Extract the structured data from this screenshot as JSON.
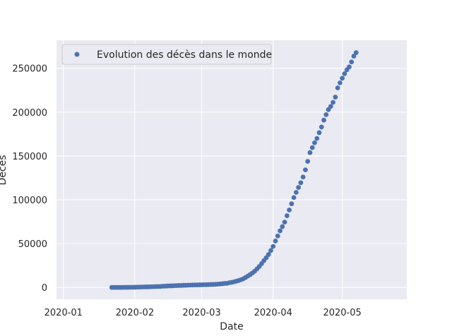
{
  "chart_data": {
    "type": "scatter",
    "title": "",
    "xlabel": "Date",
    "ylabel": "Décès",
    "x_ticks": [
      "2020-01",
      "2020-02",
      "2020-03",
      "2020-04",
      "2020-05"
    ],
    "y_ticks": [
      "0",
      "50000",
      "100000",
      "150000",
      "200000",
      "250000"
    ],
    "xlim": [
      "2019-12-29",
      "2020-05-29"
    ],
    "ylim": [
      -13500,
      282000
    ],
    "grid": true,
    "legend_position": "top-left",
    "colors": {
      "background": "#EAEAF2",
      "grid": "#FFFFFF",
      "marker": "#4C72B0"
    },
    "series": [
      {
        "name": "Evolution des décès dans le monde",
        "x": [
          "2020-01-22",
          "2020-01-23",
          "2020-01-24",
          "2020-01-25",
          "2020-01-26",
          "2020-01-27",
          "2020-01-28",
          "2020-01-29",
          "2020-01-30",
          "2020-01-31",
          "2020-02-01",
          "2020-02-02",
          "2020-02-03",
          "2020-02-04",
          "2020-02-05",
          "2020-02-06",
          "2020-02-07",
          "2020-02-08",
          "2020-02-09",
          "2020-02-10",
          "2020-02-11",
          "2020-02-12",
          "2020-02-13",
          "2020-02-14",
          "2020-02-15",
          "2020-02-16",
          "2020-02-17",
          "2020-02-18",
          "2020-02-19",
          "2020-02-20",
          "2020-02-21",
          "2020-02-22",
          "2020-02-23",
          "2020-02-24",
          "2020-02-25",
          "2020-02-26",
          "2020-02-27",
          "2020-02-28",
          "2020-02-29",
          "2020-03-01",
          "2020-03-02",
          "2020-03-03",
          "2020-03-04",
          "2020-03-05",
          "2020-03-06",
          "2020-03-07",
          "2020-03-08",
          "2020-03-09",
          "2020-03-10",
          "2020-03-11",
          "2020-03-12",
          "2020-03-13",
          "2020-03-14",
          "2020-03-15",
          "2020-03-16",
          "2020-03-17",
          "2020-03-18",
          "2020-03-19",
          "2020-03-20",
          "2020-03-21",
          "2020-03-22",
          "2020-03-23",
          "2020-03-24",
          "2020-03-25",
          "2020-03-26",
          "2020-03-27",
          "2020-03-28",
          "2020-03-29",
          "2020-03-30",
          "2020-03-31",
          "2020-04-01",
          "2020-04-02",
          "2020-04-03",
          "2020-04-04",
          "2020-04-05",
          "2020-04-06",
          "2020-04-07",
          "2020-04-08",
          "2020-04-09",
          "2020-04-10",
          "2020-04-11",
          "2020-04-12",
          "2020-04-13",
          "2020-04-14",
          "2020-04-15",
          "2020-04-16",
          "2020-04-17",
          "2020-04-18",
          "2020-04-19",
          "2020-04-20",
          "2020-04-21",
          "2020-04-22",
          "2020-04-23",
          "2020-04-24",
          "2020-04-25",
          "2020-04-26",
          "2020-04-27",
          "2020-04-28",
          "2020-04-29",
          "2020-04-30",
          "2020-05-01",
          "2020-05-02",
          "2020-05-03",
          "2020-05-04",
          "2020-05-05",
          "2020-05-06",
          "2020-05-07"
        ],
        "y": [
          17,
          18,
          26,
          42,
          56,
          82,
          131,
          133,
          171,
          213,
          259,
          362,
          426,
          492,
          564,
          634,
          719,
          806,
          906,
          1013,
          1113,
          1118,
          1371,
          1523,
          1666,
          1770,
          1868,
          2007,
          2122,
          2247,
          2251,
          2458,
          2469,
          2629,
          2708,
          2770,
          2814,
          2872,
          2941,
          2996,
          3085,
          3160,
          3254,
          3348,
          3460,
          3558,
          3802,
          3988,
          4262,
          4615,
          4720,
          5404,
          5819,
          6440,
          7126,
          7905,
          8733,
          9867,
          11299,
          12973,
          14651,
          16505,
          18625,
          21181,
          23970,
          27198,
          30652,
          33925,
          37582,
          42107,
          46809,
          52983,
          58787,
          64606,
          69374,
          74565,
          81865,
          88338,
          95455,
          102525,
          108503,
          114090,
          119482,
          125984,
          134176,
          143800,
          153822,
          159510,
          165054,
          169986,
          176583,
          183027,
          190858,
          197159,
          202846,
          206544,
          211167,
          217153,
          227638,
          233388,
          238650,
          243808,
          248282,
          251537,
          257239,
          263831,
          267854
        ]
      }
    ]
  }
}
